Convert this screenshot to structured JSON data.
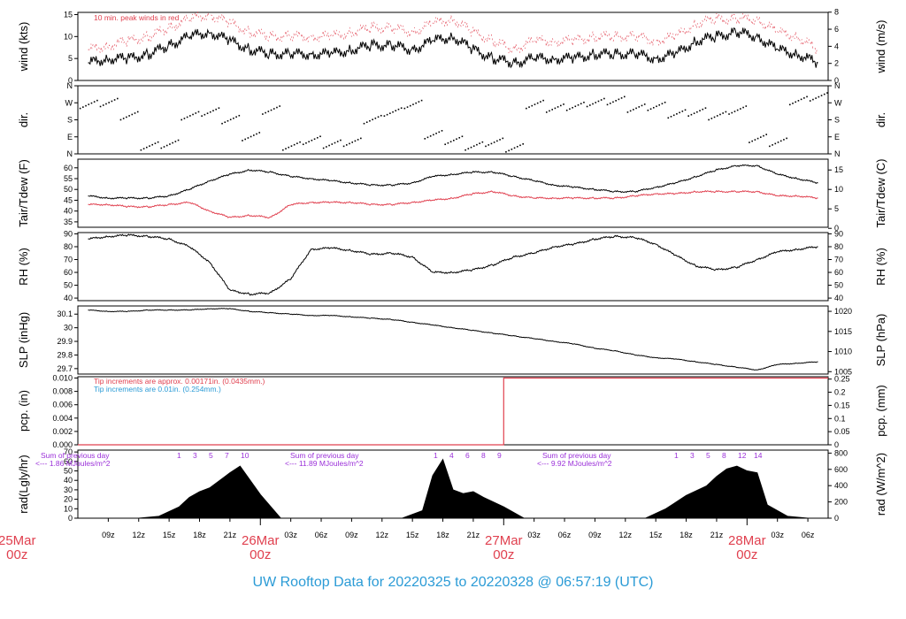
{
  "chart_data": {
    "type": "line",
    "title": "UW Rooftop Data for 20220325  to  20220328 @ 06:57:19  (UTC)",
    "time_ticks": [
      "09z",
      "12z",
      "15z",
      "18z",
      "21z",
      "03z",
      "06z",
      "09z",
      "12z",
      "15z",
      "18z",
      "21z",
      "03z",
      "06z",
      "09z",
      "12z",
      "15z",
      "18z",
      "21z",
      "03z",
      "06z"
    ],
    "day_labels": [
      {
        "date": "25Mar",
        "time": "00z"
      },
      {
        "date": "26Mar",
        "time": "00z"
      },
      {
        "date": "27Mar",
        "time": "00z"
      },
      {
        "date": "28Mar",
        "time": "00z"
      }
    ],
    "panels": [
      {
        "id": "wind",
        "left_label": "wind (kts)",
        "right_label": "wind (m/s)",
        "ylim": [
          0,
          15.5
        ],
        "left_ticks": [
          0,
          5,
          10,
          15
        ],
        "right_ticks": [
          "0",
          "2",
          "4",
          "6",
          "8"
        ],
        "note": "10 min. peak winds in red",
        "series": [
          {
            "color": "#000000",
            "x": [
              7,
              9,
              11,
              13,
              15,
              17,
              19,
              21,
              23,
              25,
              27,
              29,
              31,
              33,
              35,
              37,
              39,
              41,
              43,
              45,
              47,
              49,
              51,
              53,
              55,
              57,
              59,
              61,
              63,
              65,
              67,
              69,
              71,
              73,
              75,
              77,
              79
            ],
            "values": [
              4,
              5,
              5,
              6,
              8,
              10,
              11,
              9,
              7,
              6,
              6,
              6,
              6,
              7,
              8,
              8,
              7,
              9,
              10,
              7,
              5,
              4,
              5,
              5,
              5,
              6,
              6,
              6,
              5,
              6,
              9,
              10,
              11,
              10,
              7,
              6,
              4
            ]
          },
          {
            "color": "#e0404f",
            "x": [
              7,
              9,
              11,
              13,
              15,
              17,
              19,
              21,
              23,
              25,
              27,
              29,
              31,
              33,
              35,
              37,
              39,
              41,
              43,
              45,
              47,
              49,
              51,
              53,
              55,
              57,
              59,
              61,
              63,
              65,
              67,
              69,
              71,
              73,
              75,
              77,
              79
            ],
            "values": [
              7,
              8,
              9,
              10,
              12,
              14,
              15,
              13,
              11,
              10,
              10,
              10,
              10,
              11,
              12,
              12,
              11,
              13,
              14,
              11,
              9,
              7,
              9,
              9,
              9,
              10,
              10,
              10,
              9,
              10,
              13,
              14,
              14,
              14,
              11,
              10,
              7
            ]
          }
        ]
      },
      {
        "id": "dir",
        "left_label": "dir.",
        "right_label": "dir.",
        "ylim": [
          0,
          360
        ],
        "left_ticks": [
          "N",
          "E",
          "S",
          "W",
          "N"
        ],
        "right_ticks": [
          "N",
          "E",
          "S",
          "W",
          "N"
        ],
        "series": [
          {
            "color": "#000000",
            "style": "dots",
            "x": [
              7,
              9,
              11,
              13,
              15,
              17,
              19,
              21,
              23,
              25,
              27,
              29,
              31,
              33,
              35,
              37,
              39,
              41,
              43,
              45,
              47,
              49,
              51,
              53,
              55,
              57,
              59,
              61,
              63,
              65,
              67,
              69,
              71,
              73,
              75,
              77,
              79
            ],
            "values": [
              280,
              290,
              220,
              60,
              70,
              220,
              240,
              200,
              110,
              250,
              60,
              90,
              70,
              80,
              200,
              240,
              280,
              120,
              90,
              60,
              80,
              50,
              280,
              260,
              270,
              290,
              300,
              260,
              270,
              230,
              240,
              220,
              250,
              100,
              80,
              300,
              320
            ]
          }
        ]
      },
      {
        "id": "temp",
        "left_label": "Tair/Tdew (F)",
        "right_label": "Tair/Tdew (C)",
        "ylim": [
          32.5,
          64
        ],
        "left_ticks": [
          35,
          40,
          45,
          50,
          55,
          60
        ],
        "right_ticks": [
          "0",
          "5",
          "10",
          "15"
        ],
        "series": [
          {
            "name": "Tair",
            "color": "#000000",
            "x": [
              7,
              9,
              11,
              13,
              15,
              17,
              19,
              21,
              23,
              25,
              27,
              29,
              31,
              33,
              35,
              37,
              39,
              41,
              43,
              45,
              47,
              49,
              51,
              53,
              55,
              57,
              59,
              61,
              63,
              65,
              67,
              69,
              71,
              73,
              75,
              77,
              79
            ],
            "values": [
              47,
              46,
              46,
              46,
              47,
              50,
              54,
              57,
              59,
              58,
              56,
              55,
              54,
              53,
              52,
              52,
              53,
              56,
              57,
              58,
              58,
              56,
              54,
              52,
              51,
              50,
              49,
              49,
              51,
              53,
              56,
              59,
              61,
              61,
              57,
              55,
              53
            ]
          },
          {
            "name": "Tdew",
            "color": "#e0404f",
            "x": [
              7,
              9,
              11,
              13,
              15,
              17,
              19,
              21,
              23,
              25,
              27,
              29,
              31,
              33,
              35,
              37,
              39,
              41,
              43,
              45,
              47,
              49,
              51,
              53,
              55,
              57,
              59,
              61,
              63,
              65,
              67,
              69,
              71,
              73,
              75,
              77,
              79
            ],
            "values": [
              43,
              43,
              42,
              42,
              43,
              44,
              40,
              37,
              38,
              37,
              43,
              44,
              44,
              44,
              43,
              43,
              44,
              45,
              46,
              48,
              49,
              47,
              46,
              46,
              46,
              46,
              46,
              47,
              48,
              48,
              49,
              49,
              49,
              49,
              47,
              47,
              46
            ]
          }
        ]
      },
      {
        "id": "rh",
        "left_label": "RH (%)",
        "right_label": "RH (%)",
        "ylim": [
          38,
          91
        ],
        "left_ticks": [
          40,
          50,
          60,
          70,
          80,
          90
        ],
        "right_ticks": [
          "40",
          "50",
          "60",
          "70",
          "80",
          "90"
        ],
        "series": [
          {
            "color": "#000000",
            "x": [
              7,
              9,
              11,
              13,
              15,
              17,
              19,
              21,
              23,
              25,
              27,
              29,
              31,
              33,
              35,
              37,
              39,
              41,
              43,
              45,
              47,
              49,
              51,
              53,
              55,
              57,
              59,
              61,
              63,
              65,
              67,
              69,
              71,
              73,
              75,
              77,
              79
            ],
            "values": [
              86,
              88,
              89,
              88,
              86,
              80,
              68,
              46,
              43,
              44,
              55,
              78,
              79,
              77,
              74,
              75,
              72,
              60,
              60,
              62,
              66,
              72,
              75,
              80,
              82,
              86,
              88,
              87,
              82,
              73,
              65,
              62,
              64,
              70,
              76,
              78,
              80
            ]
          }
        ]
      },
      {
        "id": "slp",
        "left_label": "SLP (inHg)",
        "right_label": "SLP (hPa)",
        "ylim": [
          29.66,
          30.16
        ],
        "left_ticks": [
          29.7,
          29.8,
          29.9,
          30.0,
          30.1
        ],
        "right_ticks": [
          "1005",
          "1010",
          "1015",
          "1020"
        ],
        "series": [
          {
            "color": "#000000",
            "x": [
              7,
              9,
              11,
              13,
              15,
              17,
              19,
              21,
              23,
              25,
              27,
              29,
              31,
              33,
              35,
              37,
              39,
              41,
              43,
              45,
              47,
              49,
              51,
              53,
              55,
              57,
              59,
              61,
              63,
              65,
              67,
              69,
              71,
              73,
              75,
              77,
              79
            ],
            "values": [
              30.13,
              30.12,
              30.12,
              30.13,
              30.13,
              30.13,
              30.14,
              30.14,
              30.12,
              30.11,
              30.1,
              30.09,
              30.09,
              30.08,
              30.07,
              30.06,
              30.04,
              30.02,
              30.0,
              29.98,
              29.96,
              29.94,
              29.92,
              29.9,
              29.88,
              29.85,
              29.83,
              29.8,
              29.78,
              29.77,
              29.75,
              29.73,
              29.71,
              29.69,
              29.73,
              29.74,
              29.75
            ]
          }
        ]
      },
      {
        "id": "pcp",
        "left_label": "pcp. (in)",
        "right_label": "pcp. (mm)",
        "ylim": [
          0,
          0.0102
        ],
        "left_ticks": [
          "0.000",
          "0.002",
          "0.004",
          "0.006",
          "0.008",
          "0.010"
        ],
        "right_ticks": [
          "0",
          "0.05",
          "0.1",
          "0.15",
          "0.2",
          "0.25"
        ],
        "notes": [
          {
            "text": "Tip increments are approx. 0.00171in. (0.0435mm.)",
            "color": "#e0404f"
          },
          {
            "text": "Tip increments are 0.01in. (0.254mm.)",
            "color": "#2b9bd6"
          }
        ],
        "series": [
          {
            "color": "#e0404f",
            "style": "step",
            "x": [
              6,
              48,
              48,
              80
            ],
            "values": [
              0,
              0,
              0.01,
              0.01
            ]
          }
        ]
      },
      {
        "id": "rad",
        "left_label": "rad(Lgly/hr)",
        "right_label": "rad (W/m^2)",
        "ylim": [
          0,
          72
        ],
        "left_ticks": [
          0,
          10,
          20,
          30,
          40,
          50,
          60,
          70
        ],
        "right_ticks": [
          "0",
          "200",
          "400",
          "600",
          "800"
        ],
        "series": [
          {
            "color": "#000000",
            "style": "area",
            "x": [
              12,
              14,
              16,
              17,
              18,
              19,
              20,
              21,
              22,
              24,
              26,
              30,
              38,
              40,
              41,
              42,
              43,
              44,
              45,
              46,
              48,
              50,
              54,
              62,
              64,
              66,
              68,
              69,
              70,
              71,
              72,
              73,
              74,
              76,
              78
            ],
            "values": [
              0,
              2,
              12,
              22,
              28,
              32,
              40,
              48,
              55,
              25,
              0,
              0,
              0,
              8,
              45,
              62,
              30,
              26,
              28,
              22,
              12,
              0,
              0,
              0,
              10,
              24,
              34,
              44,
              52,
              55,
              50,
              48,
              14,
              2,
              0
            ]
          }
        ],
        "previous_day_notes": [
          {
            "line1": "Sum of previous day",
            "line2": "<--- 1.86 MJoules/m^2"
          },
          {
            "line1": "Sum of previous day",
            "line2": "<--- 11.89 MJoules/m^2"
          },
          {
            "line1": "Sum of previous day",
            "line2": "<--- 9.92 MJoules/m^2"
          }
        ],
        "hour_markers": [
          [
            "1",
            "3",
            "5",
            "7",
            "10"
          ],
          [
            "1",
            "4",
            "6",
            "8",
            "9"
          ],
          [
            "1",
            "3",
            "5",
            "8",
            "12",
            "14"
          ]
        ]
      }
    ]
  }
}
